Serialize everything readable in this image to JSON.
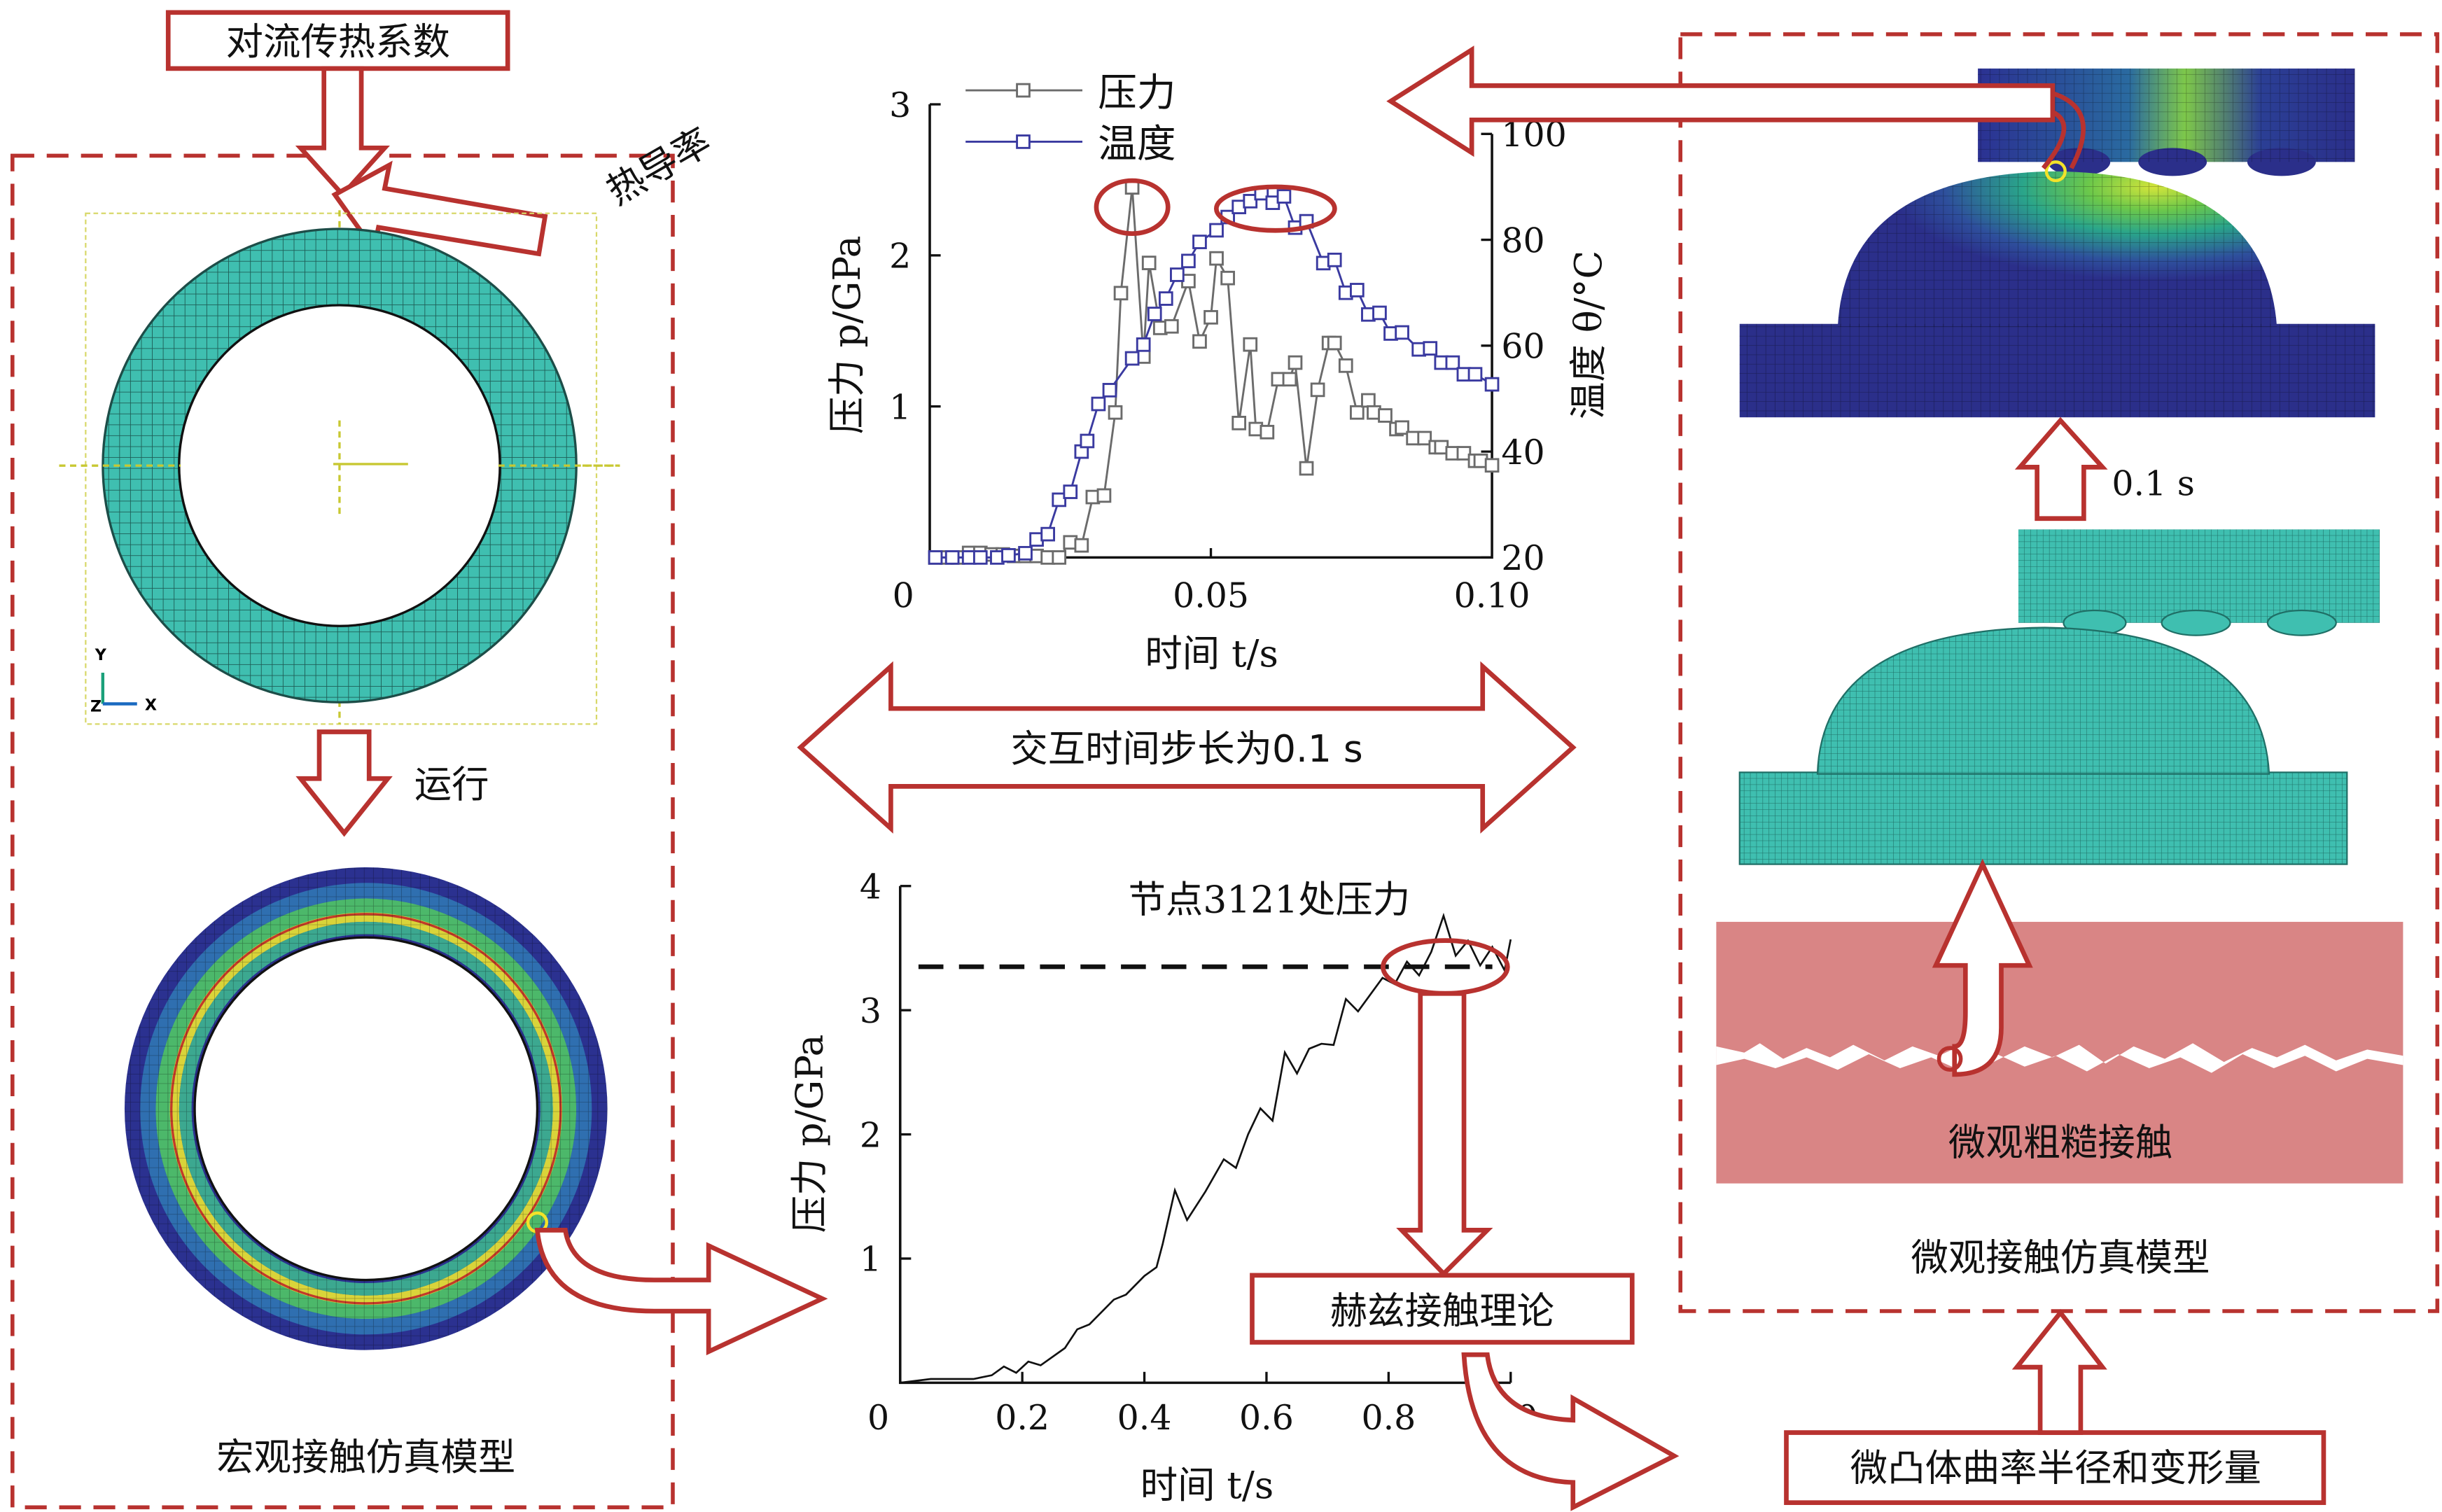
{
  "labels": {
    "convection_box": "对流传热系数",
    "thermal_conductivity": "热导率",
    "run": "运行",
    "macro_model": "宏观接触仿真模型",
    "interaction_step": "交互时间步长为0.1 s",
    "hertz_box": "赫兹接触理论",
    "asperity_box": "微凸体曲率半径和变形量",
    "micro_rough": "微观粗糙接触",
    "micro_model": "微观接触仿真模型",
    "step_time": "0.1 s",
    "triad_y": "Y",
    "triad_x": "X",
    "triad_z": "Z"
  },
  "colors": {
    "accent_red": "#b8322f",
    "pressure": "#6b6b6b",
    "temperature": "#3a3aa0",
    "mesh_teal": "#3fbfb0"
  },
  "chart_data": [
    {
      "type": "line",
      "title": "",
      "xlabel": "时间 t/s",
      "ylabel": "压力 p/GPa",
      "y2label": "温度 θ/°C",
      "xlim": [
        0,
        0.1
      ],
      "ylim": [
        0,
        3
      ],
      "y2lim": [
        20,
        100
      ],
      "xticks": [
        "0",
        "0.05",
        "0.10"
      ],
      "yticks": [
        "1",
        "2",
        "3"
      ],
      "y2ticks": [
        "20",
        "40",
        "60",
        "80",
        "100"
      ],
      "legend": [
        "压力",
        "温度"
      ],
      "legend_position": "top-left",
      "series": [
        {
          "name": "压力",
          "axis": "left",
          "marker": "square",
          "x": [
            0.001,
            0.003,
            0.005,
            0.007,
            0.009,
            0.011,
            0.013,
            0.015,
            0.017,
            0.019,
            0.021,
            0.023,
            0.025,
            0.027,
            0.029,
            0.031,
            0.033,
            0.034,
            0.036,
            0.038,
            0.039,
            0.041,
            0.043,
            0.046,
            0.048,
            0.05,
            0.051,
            0.053,
            0.055,
            0.057,
            0.058,
            0.06,
            0.062,
            0.064,
            0.065,
            0.067,
            0.069,
            0.071,
            0.072,
            0.074,
            0.076,
            0.078,
            0.079,
            0.081,
            0.083,
            0.084,
            0.086,
            0.088,
            0.09,
            0.091,
            0.093,
            0.095,
            0.097,
            0.098,
            0.1
          ],
          "y": [
            0,
            0,
            0,
            0.03,
            0.03,
            0.02,
            0.02,
            0.01,
            0.01,
            0.01,
            0,
            0,
            0.1,
            0.08,
            0.4,
            0.41,
            0.96,
            1.75,
            2.45,
            1.33,
            1.95,
            1.52,
            1.53,
            1.83,
            1.43,
            1.59,
            1.98,
            1.85,
            0.89,
            1.41,
            0.85,
            0.83,
            1.18,
            1.18,
            1.29,
            0.59,
            1.11,
            1.42,
            1.42,
            1.27,
            0.96,
            1.04,
            0.96,
            0.94,
            0.85,
            0.86,
            0.79,
            0.79,
            0.73,
            0.73,
            0.69,
            0.69,
            0.64,
            0.64,
            0.61
          ]
        },
        {
          "name": "温度",
          "axis": "right",
          "marker": "square",
          "x": [
            0.001,
            0.004,
            0.007,
            0.009,
            0.012,
            0.014,
            0.017,
            0.019,
            0.021,
            0.023,
            0.025,
            0.027,
            0.028,
            0.03,
            0.032,
            0.036,
            0.038,
            0.04,
            0.042,
            0.044,
            0.046,
            0.048,
            0.051,
            0.053,
            0.055,
            0.057,
            0.059,
            0.061,
            0.063,
            0.065,
            0.067,
            0.07,
            0.072,
            0.074,
            0.076,
            0.078,
            0.08,
            0.082,
            0.084,
            0.087,
            0.089,
            0.091,
            0.093,
            0.095,
            0.097,
            0.1
          ],
          "y": [
            20,
            20,
            20,
            20,
            20,
            20.4,
            20.8,
            23.4,
            24.4,
            30.9,
            32.4,
            40,
            42,
            49,
            51.6,
            57.6,
            60.2,
            66,
            68.9,
            73.4,
            76,
            79.6,
            81.8,
            84.3,
            86.2,
            87.3,
            88.8,
            87,
            88.2,
            82.3,
            83.5,
            75.6,
            76.2,
            70,
            70.5,
            65.9,
            66.2,
            62.3,
            62.5,
            59.3,
            59.5,
            56.8,
            56.8,
            54.6,
            54.6,
            52.7
          ]
        }
      ],
      "annotations": [
        "pressure peak circled near t=0.036 s",
        "temperature peak circled near t=0.055–0.064 s"
      ]
    },
    {
      "type": "line",
      "title": "节点3121处压力",
      "xlabel": "时间 t/s",
      "ylabel": "压力 p/GPa",
      "xlim": [
        0,
        1.0
      ],
      "ylim": [
        0,
        4
      ],
      "xticks": [
        "0",
        "0.2",
        "0.4",
        "0.6",
        "0.8",
        "1.0"
      ],
      "yticks": [
        "1",
        "2",
        "3",
        "4"
      ],
      "series": [
        {
          "name": "节点3121处压力",
          "x": [
            0,
            0.05,
            0.12,
            0.15,
            0.17,
            0.19,
            0.21,
            0.23,
            0.27,
            0.29,
            0.31,
            0.35,
            0.37,
            0.4,
            0.42,
            0.43,
            0.45,
            0.47,
            0.5,
            0.53,
            0.55,
            0.57,
            0.59,
            0.61,
            0.63,
            0.65,
            0.67,
            0.69,
            0.71,
            0.73,
            0.75,
            0.79,
            0.81,
            0.83,
            0.85,
            0.87,
            0.89,
            0.91,
            0.93,
            0.95,
            0.97,
            0.99,
            1.0
          ],
          "y": [
            0,
            0.03,
            0.03,
            0.06,
            0.13,
            0.08,
            0.17,
            0.14,
            0.28,
            0.43,
            0.47,
            0.67,
            0.71,
            0.86,
            0.93,
            1.12,
            1.55,
            1.31,
            1.54,
            1.8,
            1.73,
            2.0,
            2.21,
            2.11,
            2.66,
            2.49,
            2.69,
            2.73,
            2.72,
            3.09,
            2.99,
            3.26,
            3.21,
            3.39,
            3.28,
            3.47,
            3.76,
            3.44,
            3.56,
            3.36,
            3.51,
            3.32,
            3.57
          ]
        },
        {
          "name": "reference",
          "style": "dashed",
          "x": [
            0.03,
            0.97
          ],
          "y": [
            3.35,
            3.35
          ]
        }
      ]
    }
  ]
}
